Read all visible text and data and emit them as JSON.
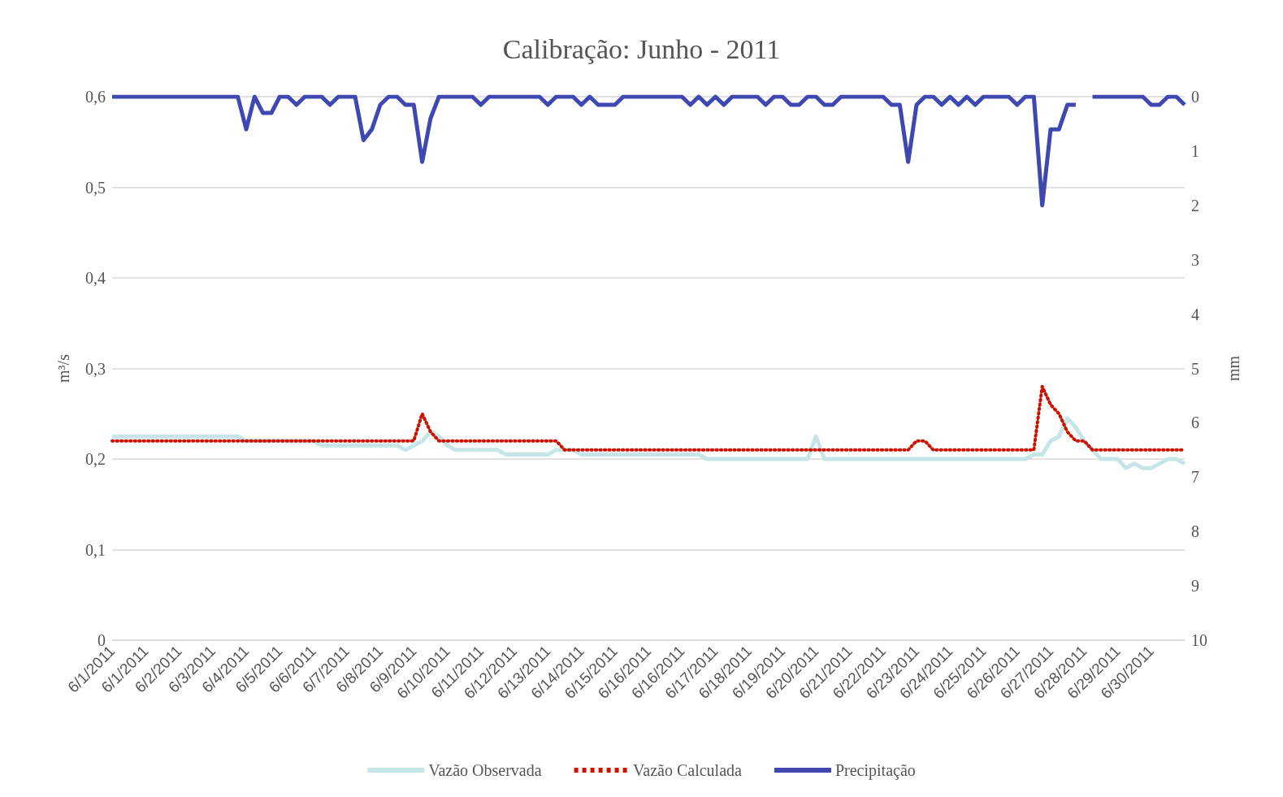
{
  "chart_data": {
    "type": "line",
    "title": "Calibração: Junho - 2011",
    "ylabel": "m³/s",
    "y2label": "mm",
    "categories": [
      "6/1/2011",
      null,
      null,
      null,
      "6/1/2011",
      null,
      null,
      null,
      "6/2/2011",
      null,
      null,
      null,
      "6/3/2011",
      null,
      null,
      null,
      "6/4/2011",
      null,
      null,
      null,
      "6/5/2011",
      null,
      null,
      null,
      "6/6/2011",
      null,
      null,
      null,
      "6/7/2011",
      null,
      null,
      null,
      "6/8/2011",
      null,
      null,
      null,
      "6/9/2011",
      null,
      null,
      null,
      "6/10/2011",
      null,
      null,
      null,
      "6/11/2011",
      null,
      null,
      null,
      "6/12/2011",
      null,
      null,
      null,
      "6/13/2011",
      null,
      null,
      null,
      "6/14/2011",
      null,
      null,
      null,
      "6/15/2011",
      null,
      null,
      null,
      "6/16/2011",
      null,
      null,
      null,
      "6/16/2011",
      null,
      null,
      null,
      "6/17/2011",
      null,
      null,
      null,
      "6/18/2011",
      null,
      null,
      null,
      "6/19/2011",
      null,
      null,
      null,
      "6/20/2011",
      null,
      null,
      null,
      "6/21/2011",
      null,
      null,
      null,
      "6/22/2011",
      null,
      null,
      null,
      "6/23/2011",
      null,
      null,
      null,
      "6/24/2011",
      null,
      null,
      null,
      "6/25/2011",
      null,
      null,
      null,
      "6/26/2011",
      null,
      null,
      null,
      "6/27/2011",
      null,
      null,
      null,
      "6/28/2011",
      null,
      null,
      null,
      "6/29/2011",
      null,
      null,
      null,
      "6/30/2011",
      null,
      null,
      null,
      null
    ],
    "series": [
      {
        "name": "Vazão Observada",
        "color": "#c5e5e6",
        "line_style": "solid",
        "values": [
          0.225,
          0.225,
          0.225,
          0.225,
          0.225,
          0.225,
          0.225,
          0.225,
          0.225,
          0.225,
          0.225,
          0.225,
          0.225,
          0.225,
          0.225,
          0.225,
          0.22,
          0.22,
          0.22,
          0.22,
          0.22,
          0.22,
          0.22,
          0.22,
          0.22,
          0.215,
          0.215,
          0.215,
          0.215,
          0.215,
          0.215,
          0.215,
          0.215,
          0.215,
          0.215,
          0.21,
          0.215,
          0.22,
          0.23,
          0.225,
          0.215,
          0.21,
          0.21,
          0.21,
          0.21,
          0.21,
          0.21,
          0.205,
          0.205,
          0.205,
          0.205,
          0.205,
          0.205,
          0.21,
          0.21,
          0.21,
          0.205,
          0.205,
          0.205,
          0.205,
          0.205,
          0.205,
          0.205,
          0.205,
          0.205,
          0.205,
          0.205,
          0.205,
          0.205,
          0.205,
          0.205,
          0.2,
          0.2,
          0.2,
          0.2,
          0.2,
          0.2,
          0.2,
          0.2,
          0.2,
          0.2,
          0.2,
          0.2,
          0.2,
          0.225,
          0.2,
          0.2,
          0.2,
          0.2,
          0.2,
          0.2,
          0.2,
          0.2,
          0.2,
          0.2,
          0.2,
          0.2,
          0.2,
          0.2,
          0.2,
          0.2,
          0.2,
          0.2,
          0.2,
          0.2,
          0.2,
          0.2,
          0.2,
          0.2,
          0.2,
          0.205,
          0.205,
          0.22,
          0.225,
          0.245,
          0.235,
          0.22,
          0.21,
          0.2,
          0.2,
          0.2,
          0.19,
          0.195,
          0.19,
          0.19,
          0.195,
          0.2,
          0.2,
          0.195
        ]
      },
      {
        "name": "Vazão Calculada",
        "color": "#cc1100",
        "line_style": "dotted",
        "values": [
          0.22,
          0.22,
          0.22,
          0.22,
          0.22,
          0.22,
          0.22,
          0.22,
          0.22,
          0.22,
          0.22,
          0.22,
          0.22,
          0.22,
          0.22,
          0.22,
          0.22,
          0.22,
          0.22,
          0.22,
          0.22,
          0.22,
          0.22,
          0.22,
          0.22,
          0.22,
          0.22,
          0.22,
          0.22,
          0.22,
          0.22,
          0.22,
          0.22,
          0.22,
          0.22,
          0.22,
          0.22,
          0.25,
          0.23,
          0.22,
          0.22,
          0.22,
          0.22,
          0.22,
          0.22,
          0.22,
          0.22,
          0.22,
          0.22,
          0.22,
          0.22,
          0.22,
          0.22,
          0.22,
          0.21,
          0.21,
          0.21,
          0.21,
          0.21,
          0.21,
          0.21,
          0.21,
          0.21,
          0.21,
          0.21,
          0.21,
          0.21,
          0.21,
          0.21,
          0.21,
          0.21,
          0.21,
          0.21,
          0.21,
          0.21,
          0.21,
          0.21,
          0.21,
          0.21,
          0.21,
          0.21,
          0.21,
          0.21,
          0.21,
          0.21,
          0.21,
          0.21,
          0.21,
          0.21,
          0.21,
          0.21,
          0.21,
          0.21,
          0.21,
          0.21,
          0.21,
          0.22,
          0.22,
          0.21,
          0.21,
          0.21,
          0.21,
          0.21,
          0.21,
          0.21,
          0.21,
          0.21,
          0.21,
          0.21,
          0.21,
          0.21,
          0.28,
          0.26,
          0.25,
          0.23,
          0.22,
          0.22,
          0.21,
          0.21,
          0.21,
          0.21,
          0.21,
          0.21,
          0.21,
          0.21,
          0.21,
          0.21,
          0.21,
          0.21
        ]
      },
      {
        "name": "Precipitação",
        "color": "#3f48b0",
        "line_style": "solid",
        "axis": "y2",
        "values": [
          0,
          0,
          0,
          0,
          0,
          0,
          0,
          0,
          0,
          0,
          0,
          0,
          0,
          0,
          0,
          0,
          0.6,
          0,
          0.3,
          0.3,
          0,
          0,
          0.15,
          0,
          0,
          0,
          0.15,
          0,
          0,
          0,
          0.8,
          0.6,
          0.15,
          0,
          0,
          0.15,
          0.15,
          1.2,
          0.4,
          0,
          0,
          0,
          0,
          0,
          0.15,
          0,
          0,
          0,
          0,
          0,
          0,
          0,
          0.15,
          0,
          0,
          0,
          0.15,
          0,
          0.15,
          0.15,
          0.15,
          0,
          0,
          0,
          0,
          0,
          0,
          0,
          0,
          0.15,
          0,
          0.15,
          0,
          0.15,
          0,
          0,
          0,
          0,
          0.15,
          0,
          0,
          0.15,
          0.15,
          0,
          0,
          0.15,
          0.15,
          0,
          0,
          0,
          0,
          0,
          0,
          0.15,
          0.15,
          1.2,
          0.15,
          0,
          0,
          0.15,
          0,
          0.15,
          0,
          0.15,
          0,
          0,
          0,
          0,
          0.15,
          0,
          0,
          2,
          0.6,
          0.6,
          0.15,
          0.15,
          null,
          0,
          0,
          0,
          0,
          0,
          0,
          0,
          0.15,
          0.15,
          0,
          0,
          0.15
        ]
      }
    ],
    "ylim": [
      0,
      0.6
    ],
    "yticks": [
      {
        "value": 0,
        "label": "0"
      },
      {
        "value": 0.1,
        "label": "0,1"
      },
      {
        "value": 0.2,
        "label": "0,2"
      },
      {
        "value": 0.3,
        "label": "0,3"
      },
      {
        "value": 0.4,
        "label": "0,4"
      },
      {
        "value": 0.5,
        "label": "0,5"
      },
      {
        "value": 0.6,
        "label": "0,6"
      }
    ],
    "y2lim": [
      10,
      0
    ],
    "y2ticks": [
      0,
      1,
      2,
      3,
      4,
      5,
      6,
      7,
      8,
      9,
      10
    ],
    "grid": "y",
    "legend": "bottom",
    "marker": "none"
  }
}
